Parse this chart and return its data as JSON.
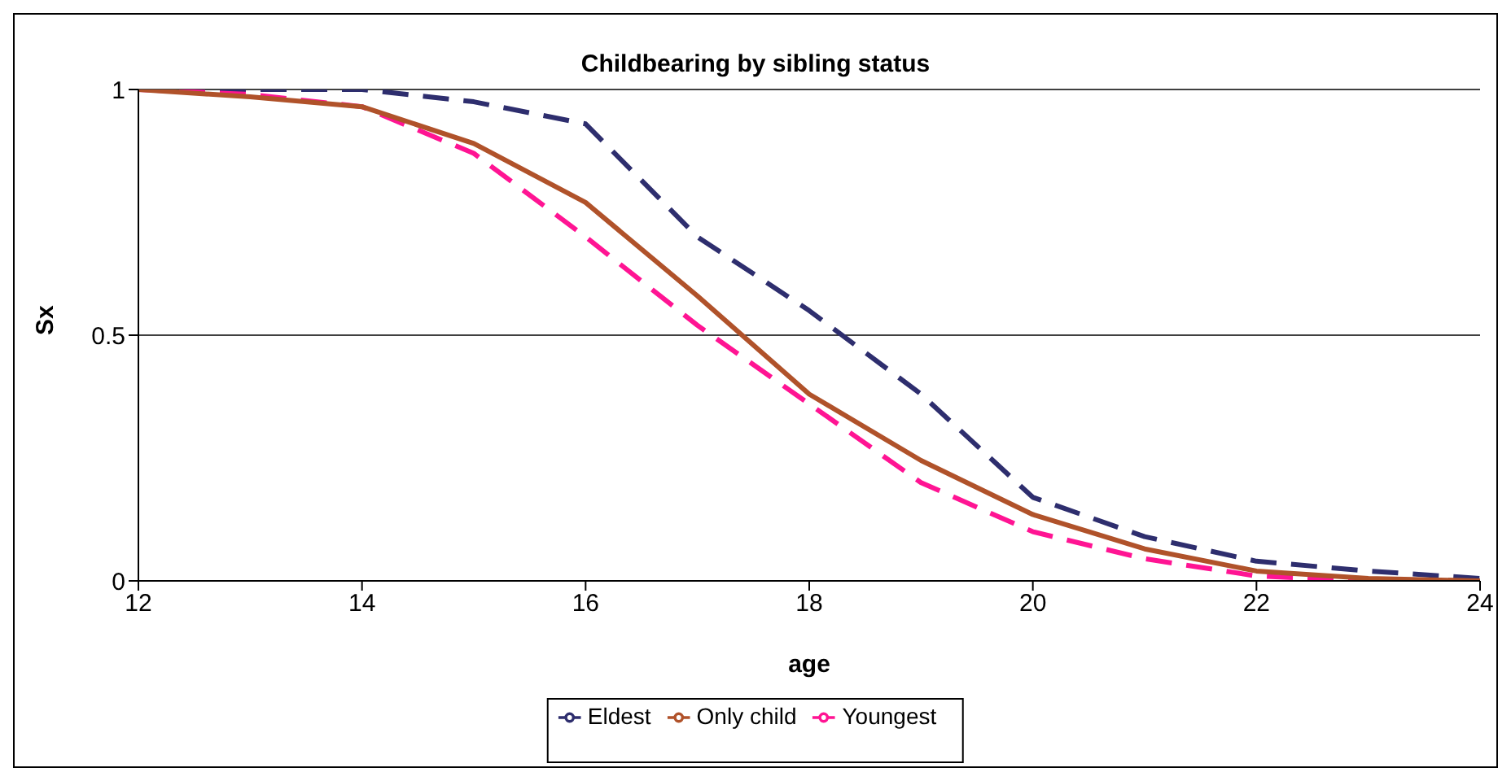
{
  "chart_data": {
    "type": "line",
    "title": "Childbearing by sibling status",
    "xlabel": "age",
    "ylabel": "Sx",
    "x": [
      12,
      13,
      14,
      15,
      16,
      17,
      18,
      19,
      20,
      21,
      22,
      23,
      24
    ],
    "series": [
      {
        "name": "Eldest",
        "color": "#2e2e6e",
        "line_style": "dashed",
        "values": [
          1,
          1,
          1,
          0.975,
          0.93,
          0.7,
          0.55,
          0.38,
          0.17,
          0.09,
          0.04,
          0.02,
          0.005
        ]
      },
      {
        "name": "Youngest",
        "color": "#ff1493",
        "line_style": "dashed",
        "values": [
          1,
          0.99,
          0.965,
          0.87,
          0.7,
          0.52,
          0.36,
          0.2,
          0.1,
          0.045,
          0.01,
          0,
          0
        ]
      },
      {
        "name": "Only child",
        "color": "#b0522a",
        "line_style": "solid",
        "values": [
          1,
          0.985,
          0.965,
          0.89,
          0.77,
          0.58,
          0.38,
          0.245,
          0.135,
          0.065,
          0.02,
          0.005,
          0
        ]
      }
    ],
    "xlim": [
      12,
      24
    ],
    "xticks": [
      12,
      14,
      16,
      18,
      20,
      22,
      24
    ],
    "ylim": [
      0,
      1
    ],
    "yticks": [
      0,
      0.5,
      1
    ],
    "grid": "y",
    "legend": "bottom",
    "marker": "none"
  }
}
